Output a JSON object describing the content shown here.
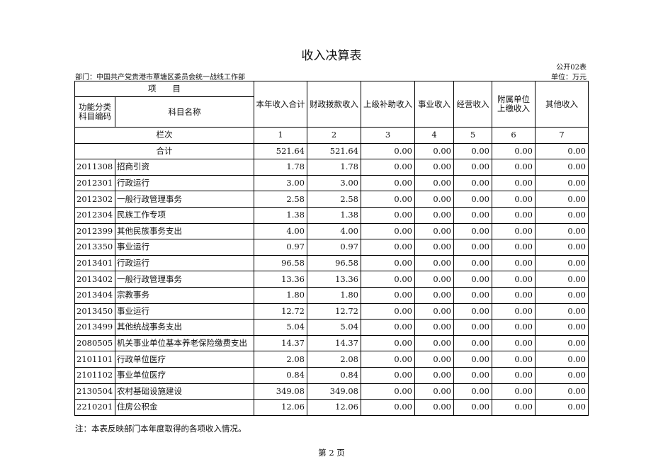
{
  "title": "收入决算表",
  "form_no": "公开02表",
  "department": "部门：中国共产党贵港市覃塘区委员会统一战线工作部",
  "unit": "单位：万元",
  "headers": {
    "item": "项　　目",
    "code": "功能分类科目编码",
    "name": "科目名称",
    "cols": [
      "本年收入合计",
      "财政拨款收入",
      "上级补助收入",
      "事业收入",
      "经营收入",
      "附属单位上缴收入",
      "其他收入"
    ]
  },
  "column_index_label": "栏次",
  "column_numbers": [
    "1",
    "2",
    "3",
    "4",
    "5",
    "6",
    "7"
  ],
  "total": {
    "label": "合计",
    "values": [
      "521.64",
      "521.64",
      "0.00",
      "0.00",
      "0.00",
      "0.00",
      "0.00"
    ]
  },
  "rows": [
    {
      "code": "2011308",
      "name": "招商引资",
      "values": [
        "1.78",
        "1.78",
        "0.00",
        "0.00",
        "0.00",
        "0.00",
        "0.00"
      ]
    },
    {
      "code": "2012301",
      "name": "行政运行",
      "values": [
        "3.00",
        "3.00",
        "0.00",
        "0.00",
        "0.00",
        "0.00",
        "0.00"
      ]
    },
    {
      "code": "2012302",
      "name": "一般行政管理事务",
      "values": [
        "2.58",
        "2.58",
        "0.00",
        "0.00",
        "0.00",
        "0.00",
        "0.00"
      ]
    },
    {
      "code": "2012304",
      "name": "民族工作专项",
      "values": [
        "1.38",
        "1.38",
        "0.00",
        "0.00",
        "0.00",
        "0.00",
        "0.00"
      ]
    },
    {
      "code": "2012399",
      "name": "其他民族事务支出",
      "values": [
        "4.00",
        "4.00",
        "0.00",
        "0.00",
        "0.00",
        "0.00",
        "0.00"
      ]
    },
    {
      "code": "2013350",
      "name": "事业运行",
      "values": [
        "0.97",
        "0.97",
        "0.00",
        "0.00",
        "0.00",
        "0.00",
        "0.00"
      ]
    },
    {
      "code": "2013401",
      "name": "行政运行",
      "values": [
        "96.58",
        "96.58",
        "0.00",
        "0.00",
        "0.00",
        "0.00",
        "0.00"
      ]
    },
    {
      "code": "2013402",
      "name": "一般行政管理事务",
      "values": [
        "13.36",
        "13.36",
        "0.00",
        "0.00",
        "0.00",
        "0.00",
        "0.00"
      ]
    },
    {
      "code": "2013404",
      "name": "宗教事务",
      "values": [
        "1.80",
        "1.80",
        "0.00",
        "0.00",
        "0.00",
        "0.00",
        "0.00"
      ]
    },
    {
      "code": "2013450",
      "name": "事业运行",
      "values": [
        "12.72",
        "12.72",
        "0.00",
        "0.00",
        "0.00",
        "0.00",
        "0.00"
      ]
    },
    {
      "code": "2013499",
      "name": "其他统战事务支出",
      "values": [
        "5.04",
        "5.04",
        "0.00",
        "0.00",
        "0.00",
        "0.00",
        "0.00"
      ]
    },
    {
      "code": "2080505",
      "name": "机关事业单位基本养老保险缴费支出",
      "values": [
        "14.37",
        "14.37",
        "0.00",
        "0.00",
        "0.00",
        "0.00",
        "0.00"
      ]
    },
    {
      "code": "2101101",
      "name": "行政单位医疗",
      "values": [
        "2.08",
        "2.08",
        "0.00",
        "0.00",
        "0.00",
        "0.00",
        "0.00"
      ]
    },
    {
      "code": "2101102",
      "name": "事业单位医疗",
      "values": [
        "0.84",
        "0.84",
        "0.00",
        "0.00",
        "0.00",
        "0.00",
        "0.00"
      ]
    },
    {
      "code": "2130504",
      "name": "农村基础设施建设",
      "values": [
        "349.08",
        "349.08",
        "0.00",
        "0.00",
        "0.00",
        "0.00",
        "0.00"
      ]
    },
    {
      "code": "2210201",
      "name": "住房公积金",
      "values": [
        "12.06",
        "12.06",
        "0.00",
        "0.00",
        "0.00",
        "0.00",
        "0.00"
      ]
    }
  ],
  "note": "注：本表反映部门本年度取得的各项收入情况。",
  "page": "第 2 页"
}
